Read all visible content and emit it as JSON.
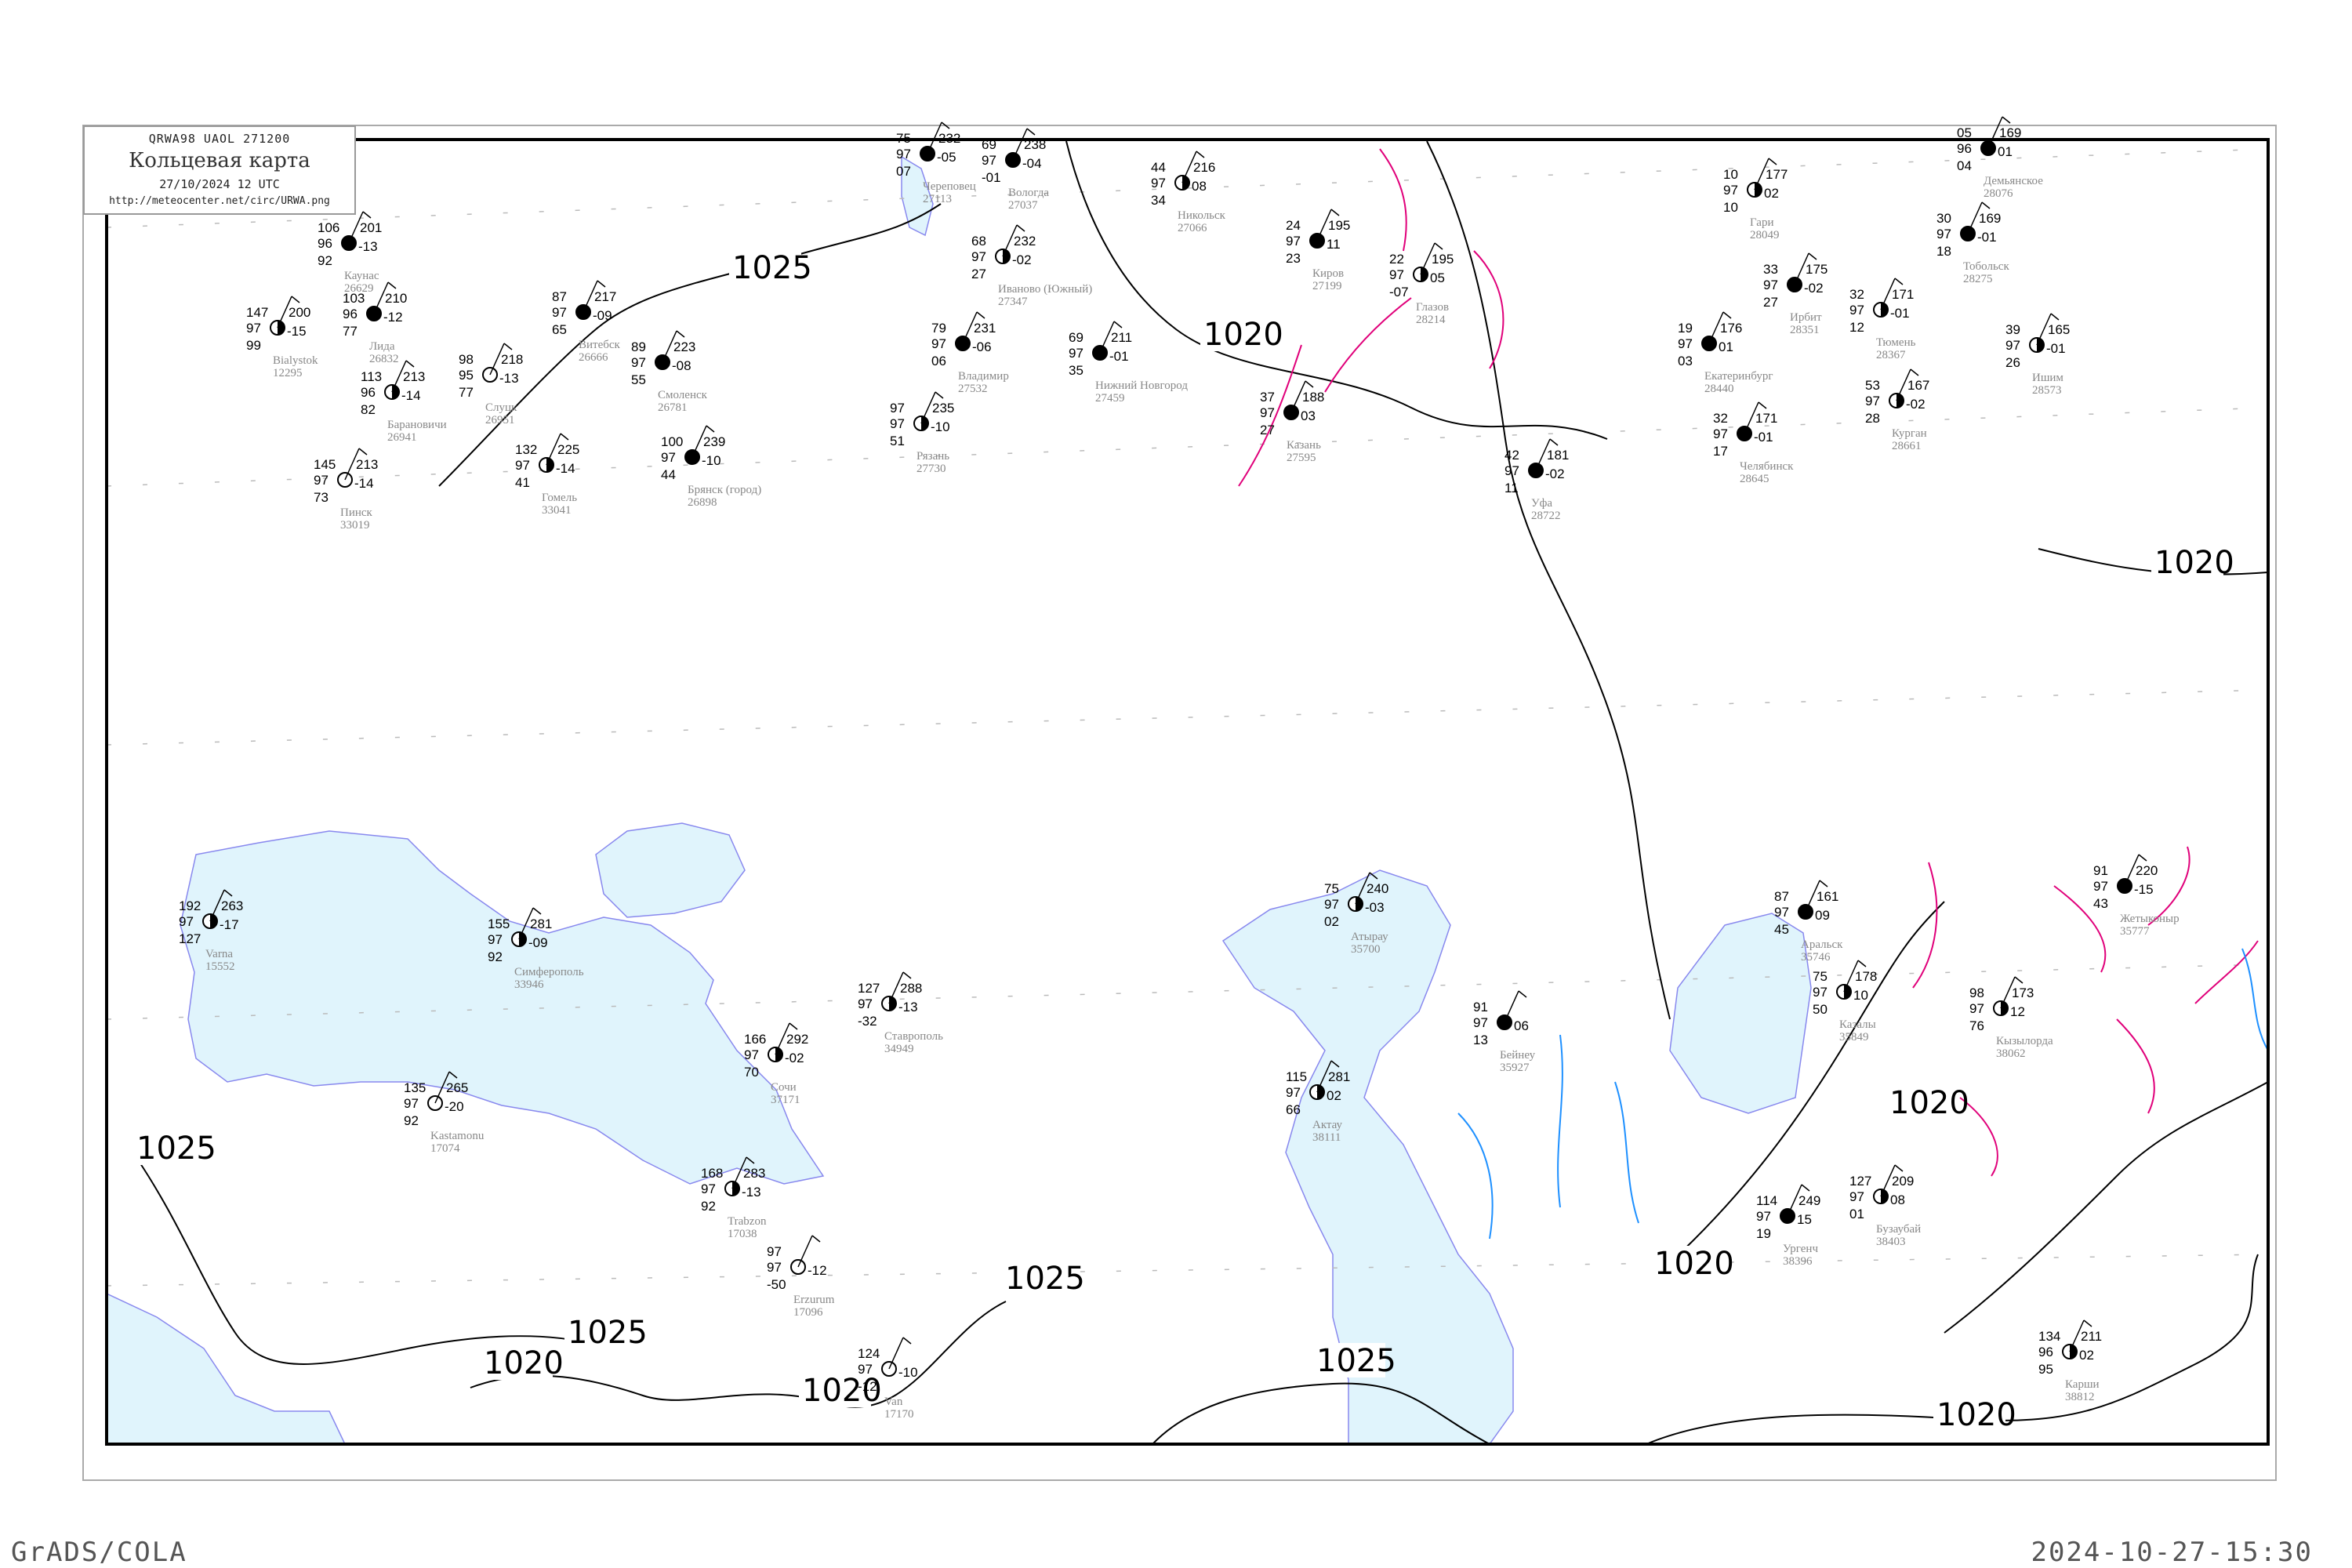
{
  "header": {
    "code_line": "QRWA98  UAOL  271200",
    "title": "Кольцевая карта",
    "date": "27/10/2024 12 UTC",
    "url": "http://meteocenter.net/circ/URWA.png"
  },
  "footer": {
    "left": "GrADS/COLA",
    "right": "2024-10-27-15:30"
  },
  "colors": {
    "sea": "#e0f4fc",
    "coast": "#8888ee",
    "isobar": "#000000",
    "isallobar": "#e0007a",
    "river": "#1e90ff",
    "station_label": "#888888",
    "precip_marker": "#22bb22",
    "fog_marker": "#ffff99",
    "snow_marker": "#3399ff"
  },
  "isobar_labels": [
    "1025",
    "1025",
    "1025",
    "1025",
    "1020",
    "1020",
    "1020",
    "1020",
    "1020",
    "1025",
    "1020",
    "1020"
  ],
  "stations": [
    {
      "name": "Каунас",
      "id": "26629",
      "tl": "106",
      "tr": "201",
      "ml": "96",
      "mr": "-13",
      "bl": "92",
      "cover": "full"
    },
    {
      "name": "Лида",
      "id": "26832",
      "tl": "103",
      "tr": "210",
      "ml": "96",
      "mr": "-12",
      "bl": "77",
      "cover": "full"
    },
    {
      "name": "Барановичи",
      "id": "26941",
      "tl": "113",
      "tr": "213",
      "ml": "96",
      "mr": "-14",
      "bl": "82",
      "cover": "half"
    },
    {
      "name": "Слуцк",
      "id": "26951",
      "tl": "98",
      "tr": "218",
      "ml": "95",
      "mr": "-13",
      "bl": "77",
      "cover": "empty"
    },
    {
      "name": "Пинск",
      "id": "33019",
      "tl": "145",
      "tr": "213",
      "ml": "97",
      "mr": "-14",
      "bl": "73",
      "cover": "empty"
    },
    {
      "name": "Bialystok",
      "id": "12295",
      "tl": "147",
      "tr": "200",
      "ml": "97",
      "mr": "-15",
      "bl": "99",
      "cover": "half"
    },
    {
      "name": "Витебск",
      "id": "26666",
      "tl": "87",
      "tr": "217",
      "ml": "97",
      "mr": "-09",
      "bl": "65",
      "cover": "full"
    },
    {
      "name": "Смоленск",
      "id": "26781",
      "tl": "89",
      "tr": "223",
      "ml": "97",
      "mr": "-08",
      "bl": "55",
      "cover": "full"
    },
    {
      "name": "Гомель",
      "id": "33041",
      "tl": "132",
      "tr": "225",
      "ml": "97",
      "mr": "-14",
      "bl": "41",
      "cover": "half"
    },
    {
      "name": "Брянск (город)",
      "id": "26898",
      "tl": "100",
      "tr": "239",
      "ml": "97",
      "mr": "-10",
      "bl": "44",
      "cover": "full"
    },
    {
      "name": "Череповец",
      "id": "27113",
      "tl": "75",
      "tr": "232",
      "ml": "97",
      "mr": "-05",
      "bl": "07",
      "cover": "full"
    },
    {
      "name": "Вологда",
      "id": "27037",
      "tl": "69",
      "tr": "238",
      "ml": "97",
      "mr": "-04",
      "bl": "-01",
      "cover": "full"
    },
    {
      "name": "Иваново (Южный)",
      "id": "27347",
      "tl": "68",
      "tr": "232",
      "ml": "97",
      "mr": "-02",
      "bl": "27",
      "cover": "half"
    },
    {
      "name": "Владимир",
      "id": "27532",
      "tl": "79",
      "tr": "231",
      "ml": "97",
      "mr": "-06",
      "bl": "06",
      "cover": "full"
    },
    {
      "name": "Рязань",
      "id": "27730",
      "tl": "97",
      "tr": "235",
      "ml": "97",
      "mr": "-10",
      "bl": "51",
      "cover": "half"
    },
    {
      "name": "Нижний Новгород",
      "id": "27459",
      "tl": "69",
      "tr": "211",
      "ml": "97",
      "mr": "-01",
      "bl": "35",
      "cover": "full"
    },
    {
      "name": "Никольск",
      "id": "27066",
      "tl": "44",
      "tr": "216",
      "ml": "97",
      "mr": "08",
      "bl": "34",
      "cover": "half"
    },
    {
      "name": "Киров",
      "id": "27199",
      "tl": "24",
      "tr": "195",
      "ml": "97",
      "mr": "11",
      "bl": "23",
      "cover": "full"
    },
    {
      "name": "Казань",
      "id": "27595",
      "tl": "37",
      "tr": "188",
      "ml": "97",
      "mr": "03",
      "bl": "27",
      "cover": "full"
    },
    {
      "name": "Глазов",
      "id": "28214",
      "tl": "22",
      "tr": "195",
      "ml": "97",
      "mr": "05",
      "bl": "-07",
      "cover": "half"
    },
    {
      "name": "Уфа",
      "id": "28722",
      "tl": "42",
      "tr": "181",
      "ml": "97",
      "mr": "-02",
      "bl": "11",
      "cover": "full"
    },
    {
      "name": "Гари",
      "id": "28049",
      "tl": "10",
      "tr": "177",
      "ml": "97",
      "mr": "02",
      "bl": "10",
      "cover": "half"
    },
    {
      "name": "Екатеринбург",
      "id": "28440",
      "tl": "19",
      "tr": "176",
      "ml": "97",
      "mr": "01",
      "bl": "03",
      "cover": "full"
    },
    {
      "name": "Ирбит",
      "id": "28351",
      "tl": "33",
      "tr": "175",
      "ml": "97",
      "mr": "-02",
      "bl": "27",
      "cover": "full"
    },
    {
      "name": "Тюмень",
      "id": "28367",
      "tl": "32",
      "tr": "171",
      "ml": "97",
      "mr": "-01",
      "bl": "12",
      "cover": "half"
    },
    {
      "name": "Тобольск",
      "id": "28275",
      "tl": "30",
      "tr": "169",
      "ml": "97",
      "mr": "-01",
      "bl": "18",
      "cover": "full"
    },
    {
      "name": "Демьянское",
      "id": "28076",
      "tl": "05",
      "tr": "169",
      "ml": "96",
      "mr": "01",
      "bl": "04",
      "cover": "full"
    },
    {
      "name": "Челябинск",
      "id": "28645",
      "tl": "32",
      "tr": "171",
      "ml": "97",
      "mr": "-01",
      "bl": "17",
      "cover": "full"
    },
    {
      "name": "Курган",
      "id": "28661",
      "tl": "53",
      "tr": "167",
      "ml": "97",
      "mr": "-02",
      "bl": "28",
      "cover": "half"
    },
    {
      "name": "Ишим",
      "id": "28573",
      "tl": "39",
      "tr": "165",
      "ml": "97",
      "mr": "-01",
      "bl": "26",
      "cover": "half"
    },
    {
      "name": "Varna",
      "id": "15552",
      "tl": "192",
      "tr": "263",
      "ml": "97",
      "mr": "-17",
      "bl": "127",
      "cover": "half"
    },
    {
      "name": "Симферополь",
      "id": "33946",
      "tl": "155",
      "tr": "281",
      "ml": "97",
      "mr": "-09",
      "bl": "92",
      "cover": "half"
    },
    {
      "name": "Сочи",
      "id": "37171",
      "tl": "166",
      "tr": "292",
      "ml": "97",
      "mr": "-02",
      "bl": "70",
      "cover": "half"
    },
    {
      "name": "Kastamonu",
      "id": "17074",
      "tl": "135",
      "tr": "265",
      "ml": "97",
      "mr": "-20",
      "bl": "92",
      "cover": "empty"
    },
    {
      "name": "Trabzon",
      "id": "17038",
      "tl": "168",
      "tr": "283",
      "ml": "97",
      "mr": "-13",
      "bl": "92",
      "cover": "half"
    },
    {
      "name": "Ставрополь",
      "id": "34949",
      "tl": "127",
      "tr": "288",
      "ml": "97",
      "mr": "-13",
      "bl": "-32",
      "cover": "half"
    },
    {
      "name": "Erzurum",
      "id": "17096",
      "tl": "97",
      "tr": "",
      "ml": "97",
      "mr": "-12",
      "bl": "-50",
      "cover": "empty"
    },
    {
      "name": "Van",
      "id": "17170",
      "tl": "124",
      "tr": "",
      "ml": "97",
      "mr": "-10",
      "bl": "-12",
      "cover": "empty"
    },
    {
      "name": "Атырау",
      "id": "35700",
      "tl": "75",
      "tr": "240",
      "ml": "97",
      "mr": "-03",
      "bl": "02",
      "cover": "half"
    },
    {
      "name": "Актау",
      "id": "38111",
      "tl": "115",
      "tr": "281",
      "ml": "97",
      "mr": "02",
      "bl": "66",
      "cover": "half"
    },
    {
      "name": "Бейнеу",
      "id": "35927",
      "tl": "91",
      "tr": "",
      "ml": "97",
      "mr": "06",
      "bl": "13",
      "cover": "full"
    },
    {
      "name": "Аральск",
      "id": "35746",
      "tl": "87",
      "tr": "161",
      "ml": "97",
      "mr": "09",
      "bl": "45",
      "cover": "full"
    },
    {
      "name": "Казалы",
      "id": "35849",
      "tl": "75",
      "tr": "178",
      "ml": "97",
      "mr": "10",
      "bl": "50",
      "cover": "half"
    },
    {
      "name": "Кызылорда",
      "id": "38062",
      "tl": "98",
      "tr": "173",
      "ml": "97",
      "mr": "12",
      "bl": "76",
      "cover": "half"
    },
    {
      "name": "Жетыконыр",
      "id": "35777",
      "tl": "91",
      "tr": "220",
      "ml": "97",
      "mr": "-15",
      "bl": "43",
      "cover": "full"
    },
    {
      "name": "Ургенч",
      "id": "38396",
      "tl": "114",
      "tr": "249",
      "ml": "97",
      "mr": "15",
      "bl": "19",
      "cover": "full"
    },
    {
      "name": "Карши",
      "id": "38812",
      "tl": "134",
      "tr": "211",
      "ml": "96",
      "mr": "02",
      "bl": "95",
      "cover": "half"
    },
    {
      "name": "Бузаубай",
      "id": "38403",
      "tl": "127",
      "tr": "209",
      "ml": "97",
      "mr": "08",
      "bl": "01",
      "cover": "half"
    }
  ]
}
